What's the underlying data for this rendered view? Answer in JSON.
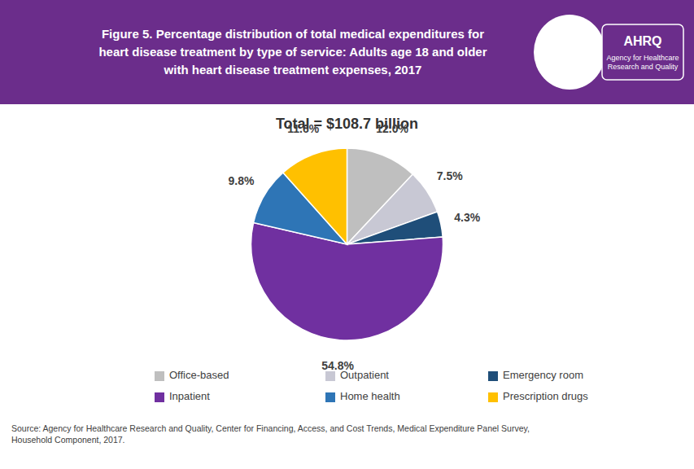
{
  "chart_data": {
    "type": "pie",
    "title": "Figure 5. Percentage distribution of total medical expenditures for\nheart disease treatment by type of service: Adults age 18 and older\nwith heart disease treatment expenses, 2017",
    "categories": [
      "Office-based",
      "Outpatient",
      "Emergency room",
      "Inpatient",
      "Home health",
      "Prescription drugs"
    ],
    "values": [
      12.0,
      7.5,
      4.3,
      54.8,
      9.8,
      11.6
    ],
    "value_labels": [
      "12.0%",
      "7.5%",
      "4.3%",
      "54.8%",
      "9.8%",
      "11.6%"
    ],
    "colors": [
      "#BFBFBF",
      "#C8C8D4",
      "#1F4E79",
      "#7030A0",
      "#2E75B6",
      "#FFC000"
    ],
    "data_labels": true,
    "legend": "bottom",
    "annotations": [
      "Total  = $108.7 billion",
      "AHRQ",
      "Agency for Healthcare\nResearch and Quality",
      "Source: Agency for Healthcare Research and Quality, Center for Financing, Access, and Cost Trends, Medical Expenditure Panel Survey,\nHousehold Component, 2017."
    ]
  }
}
